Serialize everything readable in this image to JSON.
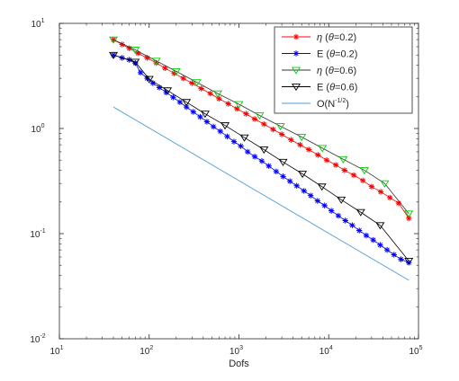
{
  "chart_data": {
    "type": "line",
    "xlabel": "Dofs",
    "ylabel": "",
    "xscale": "log",
    "yscale": "log",
    "xlim": [
      10,
      100000
    ],
    "ylim": [
      0.01,
      10
    ],
    "grid": false,
    "legend_position": "top-right",
    "x_ticks": [
      {
        "value": 10,
        "base": "10",
        "exp": "1"
      },
      {
        "value": 100,
        "base": "10",
        "exp": "2"
      },
      {
        "value": 1000,
        "base": "10",
        "exp": "3"
      },
      {
        "value": 10000,
        "base": "10",
        "exp": "4"
      },
      {
        "value": 100000,
        "base": "10",
        "exp": "5"
      }
    ],
    "y_ticks": [
      {
        "value": 0.01,
        "base": "10",
        "exp": "-2"
      },
      {
        "value": 0.1,
        "base": "10",
        "exp": "-1"
      },
      {
        "value": 1,
        "base": "10",
        "exp": "0"
      },
      {
        "value": 10,
        "base": "10",
        "exp": "1"
      }
    ],
    "series": [
      {
        "name": "η (θ=0.2)",
        "legend_parts": [
          "η",
          "  (",
          "θ",
          "=0.2)"
        ],
        "color": "#ff0000",
        "marker": "star",
        "marker_color": "#ff0000",
        "x": [
          40,
          50,
          60,
          75,
          95,
          120,
          150,
          190,
          240,
          300,
          380,
          480,
          600,
          760,
          950,
          1200,
          1500,
          1900,
          2400,
          3000,
          3800,
          4800,
          6000,
          7600,
          9500,
          12000,
          15000,
          19000,
          24000,
          30000,
          38000,
          48000,
          60000,
          78000
        ],
        "y": [
          7.0,
          6.3,
          5.8,
          5.2,
          4.7,
          4.2,
          3.75,
          3.35,
          3.0,
          2.7,
          2.4,
          2.15,
          1.92,
          1.72,
          1.54,
          1.38,
          1.23,
          1.1,
          0.98,
          0.88,
          0.78,
          0.7,
          0.63,
          0.56,
          0.5,
          0.45,
          0.4,
          0.36,
          0.32,
          0.28,
          0.25,
          0.22,
          0.195,
          0.14
        ]
      },
      {
        "name": "E (θ=0.2)",
        "legend_parts": [
          "E",
          "  (",
          "θ",
          "=0.2)"
        ],
        "color": "#0000ff",
        "marker": "star",
        "marker_color": "#0000ff",
        "x": [
          40,
          50,
          60,
          70,
          80,
          95,
          110,
          130,
          155,
          185,
          220,
          260,
          310,
          370,
          440,
          520,
          620,
          740,
          880,
          1050,
          1250,
          1500,
          1800,
          2150,
          2600,
          3100,
          3700,
          4400,
          5300,
          6300,
          7500,
          9000,
          10700,
          12800,
          15300,
          18300,
          21900,
          26200,
          31300,
          37400,
          44700,
          53400,
          63800,
          78000
        ],
        "y": [
          5.0,
          4.7,
          4.5,
          4.2,
          3.4,
          3.0,
          2.7,
          2.45,
          2.2,
          1.98,
          1.78,
          1.6,
          1.44,
          1.29,
          1.16,
          1.04,
          0.94,
          0.84,
          0.75,
          0.68,
          0.6,
          0.54,
          0.49,
          0.44,
          0.39,
          0.35,
          0.315,
          0.285,
          0.255,
          0.23,
          0.205,
          0.185,
          0.165,
          0.148,
          0.133,
          0.12,
          0.107,
          0.096,
          0.087,
          0.078,
          0.07,
          0.063,
          0.057,
          0.053
        ]
      },
      {
        "name": "η (θ=0.6)",
        "legend_parts": [
          "η",
          "  (",
          "θ",
          "=0.6)"
        ],
        "color": "#333333",
        "marker": "triangle-down",
        "marker_color": "#00cc00",
        "x": [
          40,
          70,
          120,
          200,
          340,
          580,
          1000,
          1700,
          2900,
          5000,
          8500,
          14500,
          25000,
          42000,
          78000
        ],
        "y": [
          7.0,
          5.6,
          4.4,
          3.5,
          2.75,
          2.15,
          1.7,
          1.33,
          1.05,
          0.83,
          0.65,
          0.51,
          0.4,
          0.3,
          0.155
        ]
      },
      {
        "name": "E (θ=0.6)",
        "legend_parts": [
          "E",
          "  (",
          "θ",
          "=0.6)"
        ],
        "color": "#000000",
        "marker": "triangle-down",
        "marker_color": "#000000",
        "x": [
          40,
          70,
          100,
          160,
          260,
          420,
          700,
          1150,
          1900,
          3100,
          5100,
          8400,
          13800,
          22700,
          37400,
          78000
        ],
        "y": [
          5.0,
          4.3,
          2.95,
          2.3,
          1.78,
          1.38,
          1.07,
          0.82,
          0.63,
          0.48,
          0.37,
          0.28,
          0.21,
          0.16,
          0.12,
          0.055
        ]
      },
      {
        "name": "O(N^-1/2)",
        "legend_parts": [
          "O(N",
          "-1/2",
          ")"
        ],
        "color": "#4b9cd3",
        "marker": "none",
        "x": [
          40,
          78000
        ],
        "y": [
          1.6,
          0.036
        ]
      }
    ]
  }
}
